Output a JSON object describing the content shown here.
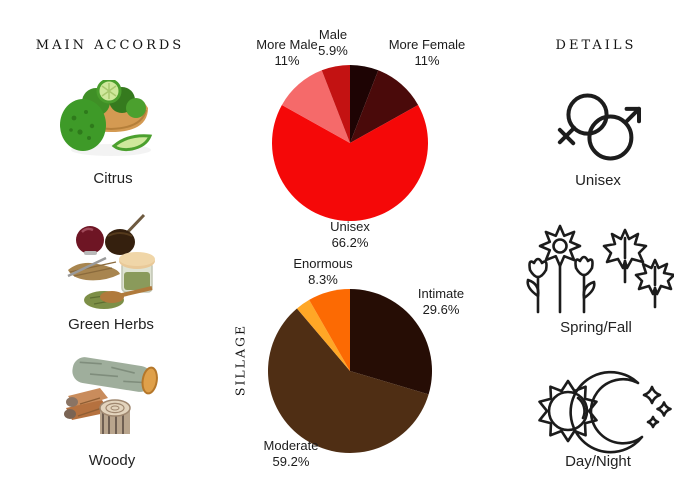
{
  "page": {
    "background": "#ffffff",
    "text_color": "#1b1b1b"
  },
  "left_panel": {
    "header": "MAIN ACCORDS",
    "accords": [
      {
        "label": "Citrus",
        "image": "bergamot-fruits-basket-photo"
      },
      {
        "label": "Green Herbs",
        "image": "mate-gourds-herb-jar-photo"
      },
      {
        "label": "Woody",
        "image": "stacked-logs-photo"
      }
    ]
  },
  "right_panel": {
    "header": "DETAILS",
    "details": [
      {
        "label": "Unisex",
        "icon": "unisex-gender-symbols-icon"
      },
      {
        "label": "Spring/Fall",
        "icon": "flowers-and-maple-leaves-icon"
      },
      {
        "label": "Day/Night",
        "icon": "sun-and-moon-icon"
      }
    ]
  },
  "charts": {
    "gender": {
      "labels": {
        "more_male": {
          "line1": "More Male",
          "line2": "11%"
        },
        "male": {
          "line1": "Male",
          "line2": "5.9%"
        },
        "more_female": {
          "line1": "More Female",
          "line2": "11%"
        },
        "unisex": {
          "line1": "Unisex",
          "line2": "66.2%"
        }
      }
    },
    "sillage": {
      "axis_label": "SILLAGE",
      "labels": {
        "enormous": {
          "line1": "Enormous",
          "line2": "8.3%"
        },
        "intimate": {
          "line1": "Intimate",
          "line2": "29.6%"
        },
        "moderate": {
          "line1": "Moderate",
          "line2": "59.2%"
        }
      }
    }
  },
  "chart_data": [
    {
      "type": "pie",
      "name": "gender-votes",
      "start": "12-o-clock, clockwise",
      "slices": [
        {
          "label": "",
          "value": 5.9,
          "color": "#1e0404"
        },
        {
          "label": "More Female",
          "value": 11,
          "color": "#4a0a0a"
        },
        {
          "label": "Unisex",
          "value": 66.2,
          "color": "#f50808"
        },
        {
          "label": "More Male",
          "value": 11,
          "color": "#f56a6a"
        },
        {
          "label": "Male",
          "value": 5.9,
          "color": "#c31212"
        }
      ]
    },
    {
      "type": "pie",
      "name": "sillage-votes",
      "start": "12-o-clock, clockwise",
      "slices": [
        {
          "label": "Intimate",
          "value": 29.6,
          "color": "#260d05"
        },
        {
          "label": "Moderate",
          "value": 59.2,
          "color": "#4f2e14"
        },
        {
          "label": "",
          "value": 2.9,
          "color": "#ffa726"
        },
        {
          "label": "Enormous",
          "value": 8.3,
          "color": "#fc6a03"
        }
      ]
    }
  ]
}
